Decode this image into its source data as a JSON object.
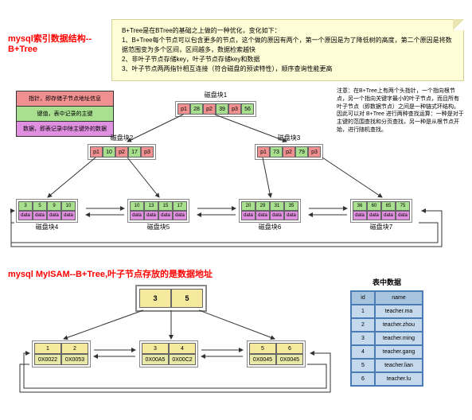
{
  "note": {
    "line1": "B+Tree是在BTree的基础之上做的一种优化，变化如下：",
    "line2": "1、B+Tree每个节点可以包含更多的节点，这个做的原因有两个，第一个原因是为了降低树的高度，第二个原因是将数据范围变为多个区间，区间越多，数据检索越快",
    "line3": "2、非叶子节点存储key，叶子节点存储key和数据",
    "line4": "3、叶子节点两两指针相互连接（符合磁盘的预读特性），顺序查询性能更高"
  },
  "title1": "mysql索引数据结构--B+Tree",
  "aside": "注意：在B+Tree上有两个头指针，一个指向根节点，另一个指向关键字最小的叶子节点，而且所有叶子节点（即数据节点）之间是一种链式环结构。因此可以对 B+Tree 进行两种查找运算：一种是对于主键的范围查找和分页查找，另一种是从根节点开始，进行随机查找。",
  "legend": {
    "ptr": "指针，即存储子节点地址信息",
    "key": "键值，表中记录的主键",
    "data": "数据，即表记录中除主键外的数据"
  },
  "colors": {
    "ptr": "#f19090",
    "key": "#a8e090",
    "data": "#e090e0",
    "big_yellow": "#f5e99e",
    "med_yellow": "#f5e99e",
    "addr": "#e8e8a8"
  },
  "disk1": {
    "label": "磁盘块1",
    "cells": [
      "p1",
      "28",
      "p2",
      "39",
      "p3",
      "56"
    ]
  },
  "disk2": {
    "label": "磁盘块2",
    "cells": [
      "p1",
      "10",
      "p2",
      "17",
      "p3"
    ]
  },
  "disk3": {
    "label": "磁盘块3",
    "cells": [
      "p1",
      "73",
      "p2",
      "79",
      "p3"
    ]
  },
  "leaf4": {
    "label": "磁盘块4",
    "keys": [
      "3",
      "5",
      "9",
      "10"
    ],
    "data": [
      "data",
      "data",
      "data",
      "data"
    ]
  },
  "leaf5": {
    "label": "磁盘块5",
    "keys": [
      "10",
      "13",
      "15",
      "17"
    ],
    "data": [
      "data",
      "data",
      "data",
      "data"
    ]
  },
  "leaf6": {
    "label": "磁盘块6",
    "keys": [
      "20",
      "29",
      "31",
      "35"
    ],
    "data": [
      "data",
      "data",
      "data",
      "data"
    ]
  },
  "leaf7": {
    "label": "磁盘块7",
    "keys": [
      "36",
      "60",
      "65",
      "75"
    ],
    "data": [
      "data",
      "data",
      "data",
      "data"
    ]
  },
  "title2": "mysql MyISAM--B+Tree,叶子节点存放的是数据地址",
  "root2": [
    "3",
    "5"
  ],
  "mid1": {
    "keys": [
      "1",
      "2"
    ],
    "addrs": [
      "0X0022",
      "0X0053"
    ]
  },
  "mid2": {
    "keys": [
      "3",
      "4"
    ],
    "addrs": [
      "0X00A5",
      "0X00C2"
    ]
  },
  "mid3": {
    "keys": [
      "5",
      "6"
    ],
    "addrs": [
      "0X0045",
      "0X0045"
    ]
  },
  "table": {
    "title": "表中数据",
    "headers": [
      "id",
      "name"
    ],
    "rows": [
      [
        "1",
        "teacher.ma"
      ],
      [
        "2",
        "teacher.zhou"
      ],
      [
        "3",
        "teacher.ming"
      ],
      [
        "4",
        "teacher.gang"
      ],
      [
        "5",
        "teacher.lian"
      ],
      [
        "6",
        "teacher.lu"
      ]
    ]
  }
}
